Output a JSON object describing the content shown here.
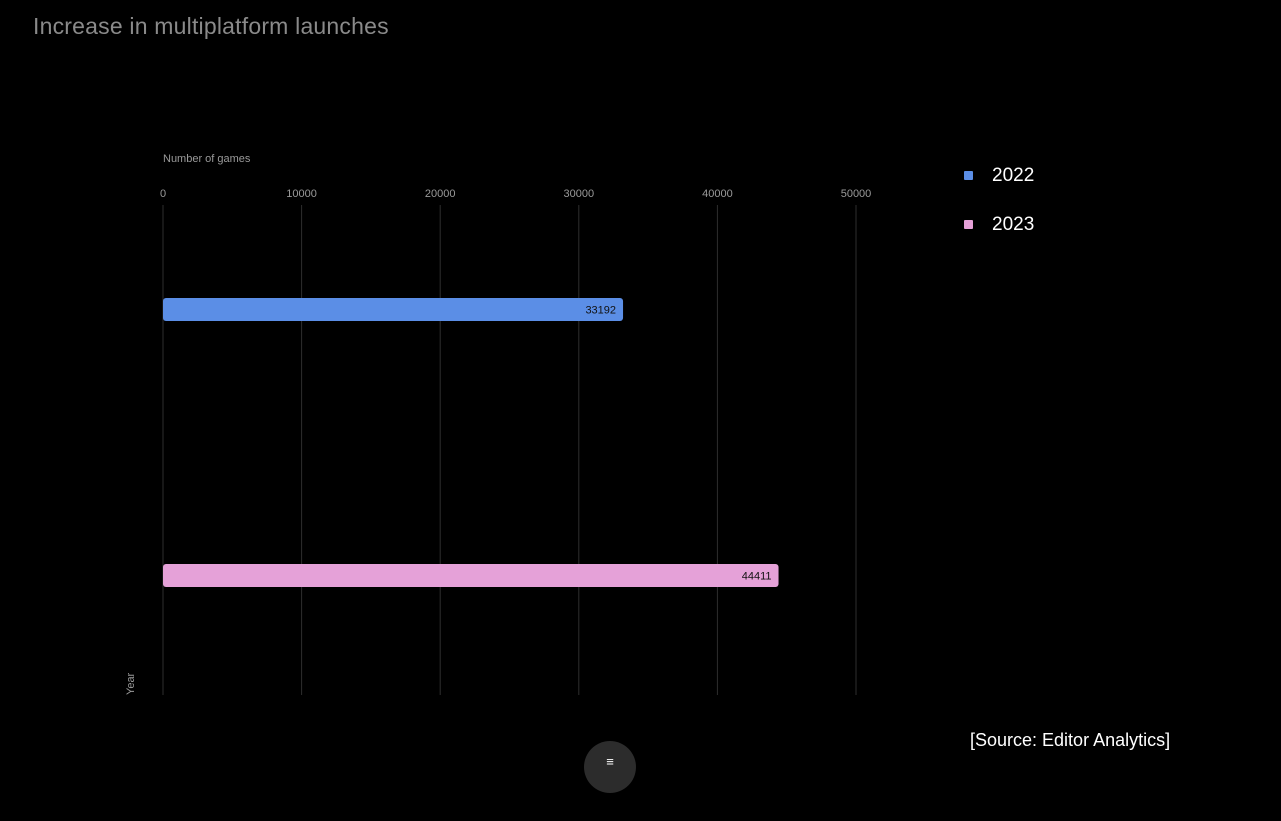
{
  "chart_data": {
    "type": "bar",
    "orientation": "horizontal",
    "title": "Increase in multiplatform launches",
    "xlabel": "Number of games",
    "ylabel": "Year",
    "categories": [
      "2022",
      "2023"
    ],
    "values": [
      33192,
      44411
    ],
    "colors": [
      "#5b8ee6",
      "#e5a1d8"
    ],
    "xlim": [
      0,
      50000
    ],
    "xticks": [
      "0",
      "10000",
      "20000",
      "30000",
      "40000",
      "50000"
    ],
    "grid": true,
    "legend_placement": "right",
    "data_labels": [
      "33192",
      "44411"
    ]
  },
  "legend": {
    "items": [
      {
        "label": "2022",
        "color": "#5b8ee6"
      },
      {
        "label": "2023",
        "color": "#e5a1d8"
      }
    ]
  },
  "source": "[Source: Editor Analytics]",
  "menu": {
    "icon": "≡"
  }
}
